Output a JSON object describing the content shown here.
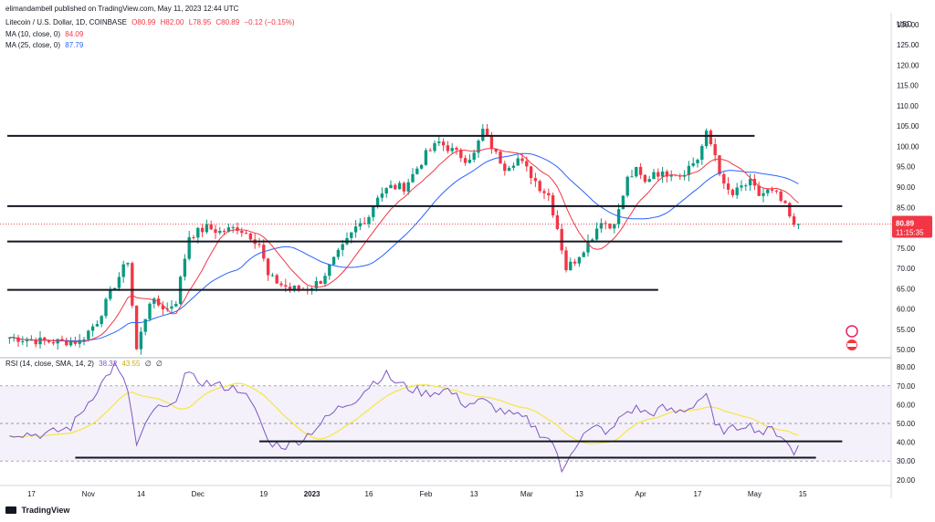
{
  "header": {
    "publisher": "elimandambell published on TradingView.com, May 11, 2023 12:44 UTC",
    "symbol": "Litecoin / U.S. Dollar, 1D, COINBASE",
    "ohlc": {
      "o": "O80.99",
      "h": "H82.00",
      "l": "L78.95",
      "c": "C80.89",
      "chg": "−0.12 (−0.15%)"
    },
    "ma10_label": "MA (10, close, 0)",
    "ma10_value": "84.09",
    "ma25_label": "MA (25, close, 0)",
    "ma25_value": "87.79",
    "rsi_label": "RSI (14, close, SMA, 14, 2)",
    "rsi_value": "38.32",
    "rsi_sma_value": "43.55",
    "rsi_extra1": "∅",
    "rsi_extra2": "∅",
    "currency": "USD",
    "price_tag": "80.89",
    "timer_tag": "11:15:35"
  },
  "brand": {
    "name": "TradingView"
  },
  "colors": {
    "up": "#089981",
    "down": "#f23645",
    "ma10": "#f23645",
    "ma25": "#2962ff",
    "rsi": "#7e57c2",
    "rsi_sma": "#f5e642"
  },
  "chart_data": [
    {
      "type": "candlestick",
      "title": "Litecoin / U.S. Dollar, 1D, COINBASE",
      "ylim": [
        48,
        132
      ],
      "y_ticks": [
        "130.00",
        "125.00",
        "120.00",
        "115.00",
        "110.00",
        "105.00",
        "100.00",
        "95.00",
        "90.00",
        "85.00",
        "80.00",
        "75.00",
        "70.00",
        "65.00",
        "60.00",
        "55.00",
        "50.00"
      ],
      "x_tick_labels": [
        "17",
        "Nov",
        "14",
        "Dec",
        "19",
        "2023",
        "16",
        "Feb",
        "13",
        "Mar",
        "13",
        "Apr",
        "17",
        "May",
        "15"
      ],
      "last_price": 80.89,
      "waypoints": [
        [
          0,
          53
        ],
        [
          8,
          52
        ],
        [
          16,
          52
        ],
        [
          20,
          57
        ],
        [
          24,
          66
        ],
        [
          27,
          72
        ],
        [
          29,
          50
        ],
        [
          32,
          62
        ],
        [
          36,
          60
        ],
        [
          38,
          62
        ],
        [
          41,
          78
        ],
        [
          45,
          80
        ],
        [
          48,
          79
        ],
        [
          52,
          80
        ],
        [
          55,
          78
        ],
        [
          57,
          76
        ],
        [
          59,
          68
        ],
        [
          62,
          66
        ],
        [
          64,
          65
        ],
        [
          68,
          65
        ],
        [
          71,
          67
        ],
        [
          74,
          72
        ],
        [
          76,
          75
        ],
        [
          79,
          80
        ],
        [
          82,
          83
        ],
        [
          84,
          88
        ],
        [
          87,
          90
        ],
        [
          90,
          90
        ],
        [
          92,
          93
        ],
        [
          95,
          98
        ],
        [
          98,
          101
        ],
        [
          101,
          99
        ],
        [
          104,
          97
        ],
        [
          106,
          98
        ],
        [
          108,
          104
        ],
        [
          111,
          98
        ],
        [
          113,
          95
        ],
        [
          116,
          97
        ],
        [
          119,
          93
        ],
        [
          121,
          90
        ],
        [
          123,
          88
        ],
        [
          125,
          80
        ],
        [
          127,
          70
        ],
        [
          129,
          72
        ],
        [
          131,
          75
        ],
        [
          133,
          78
        ],
        [
          135,
          82
        ],
        [
          137,
          80
        ],
        [
          139,
          84
        ],
        [
          141,
          92
        ],
        [
          143,
          94
        ],
        [
          145,
          91
        ],
        [
          147,
          94
        ],
        [
          149,
          93
        ],
        [
          151,
          94
        ],
        [
          153,
          93
        ],
        [
          155,
          95
        ],
        [
          157,
          97
        ],
        [
          159,
          103
        ],
        [
          161,
          98
        ],
        [
          163,
          90
        ],
        [
          165,
          88
        ],
        [
          167,
          90
        ],
        [
          169,
          91
        ],
        [
          171,
          88
        ],
        [
          173,
          89
        ],
        [
          175,
          88
        ],
        [
          177,
          85
        ],
        [
          179,
          80
        ],
        [
          180,
          80.9
        ]
      ],
      "series": [
        {
          "name": "MA (10, close, 0)",
          "last": 84.09
        },
        {
          "name": "MA (25, close, 0)",
          "last": 87.79
        }
      ],
      "trendlines": [
        {
          "x": [
            0,
            170
          ],
          "y": [
            102.6,
            102.6
          ]
        },
        {
          "x": [
            0,
            190
          ],
          "y": [
            85.3,
            85.3
          ]
        },
        {
          "x": [
            0,
            190
          ],
          "y": [
            76.6,
            76.6
          ]
        },
        {
          "x": [
            0,
            148
          ],
          "y": [
            64.7,
            64.7
          ]
        }
      ]
    },
    {
      "type": "line",
      "title": "RSI (14, close, SMA, 14, 2)",
      "ylim": [
        17,
        83
      ],
      "y_ticks": [
        "80.00",
        "70.00",
        "60.00",
        "50.00",
        "40.00",
        "30.00",
        "20.00"
      ],
      "bands": {
        "upper": 70,
        "middle": 50,
        "lower": 30
      },
      "waypoints": [
        [
          0,
          45
        ],
        [
          8,
          44
        ],
        [
          14,
          48
        ],
        [
          20,
          68
        ],
        [
          24,
          81
        ],
        [
          27,
          68
        ],
        [
          29,
          38
        ],
        [
          33,
          58
        ],
        [
          37,
          58
        ],
        [
          40,
          76
        ],
        [
          44,
          72
        ],
        [
          48,
          70
        ],
        [
          53,
          68
        ],
        [
          57,
          53
        ],
        [
          59,
          40
        ],
        [
          63,
          38
        ],
        [
          67,
          42
        ],
        [
          71,
          50
        ],
        [
          75,
          58
        ],
        [
          79,
          63
        ],
        [
          83,
          72
        ],
        [
          86,
          76
        ],
        [
          88,
          72
        ],
        [
          92,
          68
        ],
        [
          95,
          66
        ],
        [
          100,
          68
        ],
        [
          104,
          60
        ],
        [
          108,
          62
        ],
        [
          111,
          58
        ],
        [
          114,
          55
        ],
        [
          118,
          52
        ],
        [
          121,
          45
        ],
        [
          124,
          40
        ],
        [
          126,
          24
        ],
        [
          128,
          35
        ],
        [
          131,
          44
        ],
        [
          134,
          48
        ],
        [
          137,
          45
        ],
        [
          140,
          55
        ],
        [
          143,
          58
        ],
        [
          146,
          55
        ],
        [
          149,
          58
        ],
        [
          152,
          56
        ],
        [
          155,
          58
        ],
        [
          159,
          66
        ],
        [
          161,
          48
        ],
        [
          164,
          46
        ],
        [
          168,
          50
        ],
        [
          172,
          45
        ],
        [
          174,
          47
        ],
        [
          177,
          42
        ],
        [
          179,
          33
        ],
        [
          180,
          38
        ]
      ],
      "series": [
        {
          "name": "RSI",
          "last": 38.32
        },
        {
          "name": "SMA",
          "last": 43.55
        }
      ],
      "trendlines": [
        {
          "x": [
            57,
            190
          ],
          "y": [
            40.5,
            40.5
          ]
        },
        {
          "x": [
            15,
            184
          ],
          "y": [
            31.8,
            31.8
          ]
        }
      ]
    }
  ]
}
